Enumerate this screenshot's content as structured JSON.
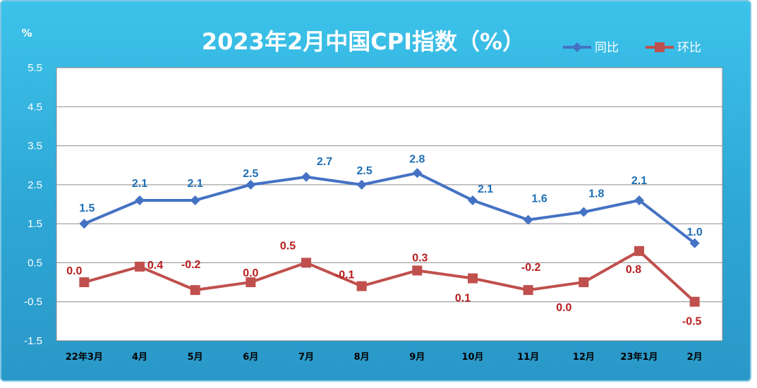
{
  "chart_data": {
    "type": "line",
    "title": "2023年2月中国CPI指数（%）",
    "ylabel": "%",
    "xlabel": "",
    "ylim": [
      -1.5,
      5.5
    ],
    "yticks": [
      5.5,
      4.5,
      3.5,
      2.5,
      1.5,
      0.5,
      -0.5,
      -1.5
    ],
    "ytick_labels": [
      "5.5",
      "4.5",
      "3.5",
      "2.5",
      "1.5",
      "0.5",
      "-0.5",
      "-1.5"
    ],
    "grid": true,
    "legend_position": "top-right",
    "categories": [
      "22年3月",
      "4月",
      "5月",
      "6月",
      "7月",
      "8月",
      "9月",
      "10月",
      "11月",
      "12月",
      "23年1月",
      "2月"
    ],
    "series": [
      {
        "name": "同比",
        "color": "#4472c4",
        "marker": "diamond",
        "values": [
          1.5,
          2.1,
          2.1,
          2.5,
          2.7,
          2.5,
          2.8,
          2.1,
          1.6,
          1.8,
          2.1,
          1.0
        ],
        "labels": [
          "1.5",
          "2.1",
          "2.1",
          "2.5",
          "2.7",
          "2.5",
          "2.8",
          "2.1",
          "1.6",
          "1.8",
          "2.1",
          "1.0"
        ]
      },
      {
        "name": "环比",
        "color": "#c0504d",
        "marker": "square",
        "values": [
          0.0,
          0.4,
          -0.2,
          0.0,
          0.5,
          -0.1,
          0.3,
          0.1,
          -0.2,
          0.0,
          0.8,
          -0.5
        ],
        "labels": [
          "0.0",
          "0.4",
          "-0.2",
          "0.0",
          "0.5",
          "-0.1",
          "0.3",
          "0.1",
          "-0.2",
          "0.0",
          "0.8",
          "-0.5"
        ]
      }
    ]
  }
}
